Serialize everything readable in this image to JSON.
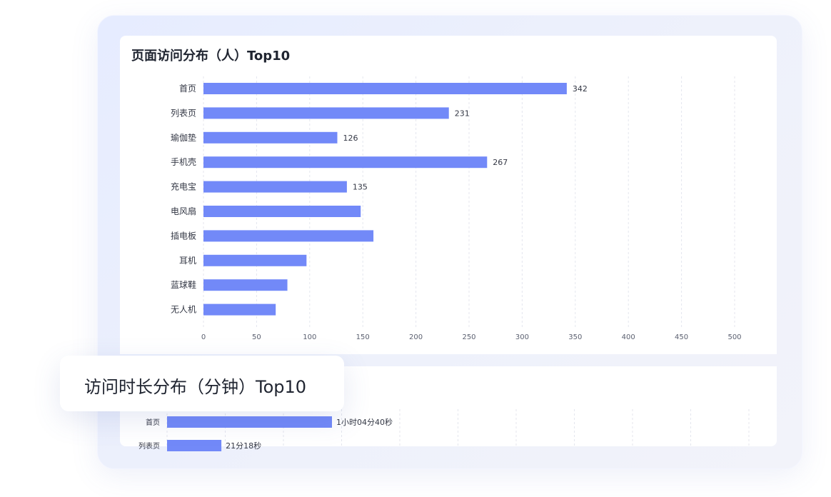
{
  "panel1": {
    "title": "页面访问分布（人）Top10"
  },
  "panel2": {
    "title": "访问时长分布（分钟）Top10"
  },
  "chart_data": [
    {
      "type": "bar",
      "orientation": "horizontal",
      "title": "页面访问分布（人）Top10",
      "categories": [
        "首页",
        "列表页",
        "瑜伽垫",
        "手机壳",
        "充电宝",
        "电风扇",
        "插电板",
        "耳机",
        "蓝球鞋",
        "无人机"
      ],
      "values": [
        342,
        231,
        126,
        267,
        135,
        148,
        160,
        97,
        79,
        68
      ],
      "data_labels": [
        "342",
        "231",
        "126",
        "267",
        "135",
        "",
        "",
        "",
        "",
        ""
      ],
      "xlim": [
        0,
        500
      ],
      "xticks": [
        0,
        50,
        100,
        150,
        200,
        250,
        300,
        350,
        400,
        450,
        500
      ],
      "grid": "vertical-dashed",
      "color": "#7289f8"
    },
    {
      "type": "bar",
      "orientation": "horizontal",
      "title": "访问时长分布（分钟）Top10",
      "categories": [
        "首页",
        "列表页"
      ],
      "values": [
        64.67,
        21.3
      ],
      "data_labels": [
        "1小时04分40秒",
        "21分18秒"
      ],
      "grid": "vertical-dashed",
      "color": "#7289f8"
    }
  ]
}
